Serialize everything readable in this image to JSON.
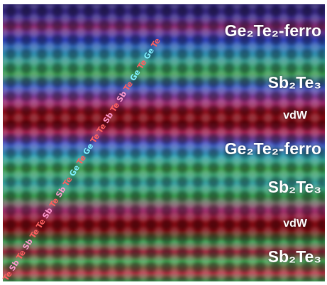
{
  "layer_labels": [
    "Ge₂Te₂-ferro",
    "Sb₂Te₃",
    "vdW",
    "Ge₂Te₂-ferro",
    "Sb₂Te₃",
    "vdW",
    "Sb₂Te₃"
  ],
  "stacking_sequence": [
    "Te",
    "Sb",
    "Te",
    "Sb",
    "Te",
    "Te",
    "Sb",
    "Te",
    "Sb",
    "Te",
    "Ge",
    "Te",
    "Ge",
    "Te",
    "Te",
    "Sb",
    "Te",
    "Sb",
    "Te",
    "Ge",
    "Te",
    "Ge",
    "Te"
  ],
  "atom_colors": {
    "Te": "#ff6060",
    "Sb": "#ff9ad0",
    "Ge": "#7ff0ff"
  }
}
